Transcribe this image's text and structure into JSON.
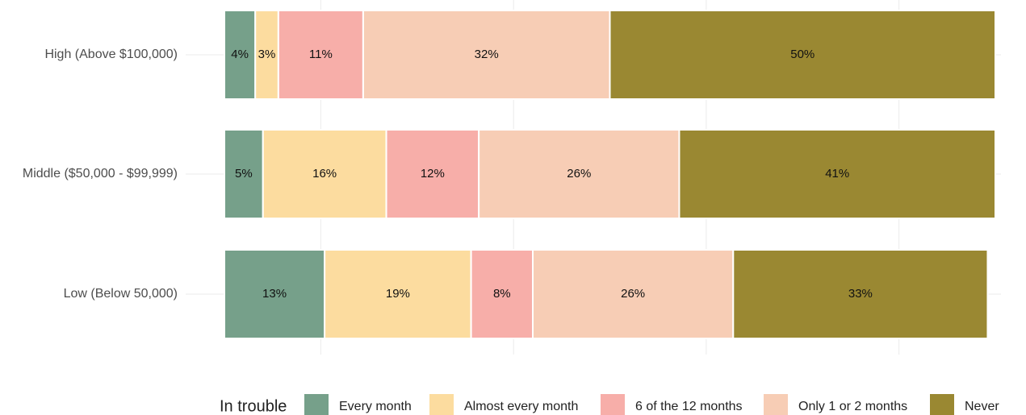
{
  "chart_data": {
    "type": "stacked_bar_horizontal",
    "categories": [
      "High (Above $100,000)",
      "Middle ($50,000 - $99,999)",
      "Low (Below 50,000)"
    ],
    "series": [
      {
        "name": "Every month",
        "color": "#76a08a",
        "values": [
          4,
          5,
          13
        ],
        "value_labels": [
          "4%",
          "5%",
          "13%"
        ]
      },
      {
        "name": "Almost every month",
        "color": "#fcdc9f",
        "values": [
          3,
          16,
          19
        ],
        "value_labels": [
          "3%",
          "16%",
          "19%"
        ]
      },
      {
        "name": "6 of the 12 months",
        "color": "#f7aea9",
        "values": [
          11,
          12,
          8
        ],
        "value_labels": [
          "11%",
          "12%",
          "8%"
        ]
      },
      {
        "name": "Only 1 or 2 months",
        "color": "#f7cdb5",
        "values": [
          32,
          26,
          26
        ],
        "value_labels": [
          "32%",
          "26%",
          "26%"
        ]
      },
      {
        "name": "Never",
        "color": "#9a8832",
        "values": [
          50,
          41,
          33
        ],
        "value_labels": [
          "50%",
          "41%",
          "33%"
        ]
      }
    ],
    "xlim": [
      0,
      100
    ],
    "xticks": [
      12.5,
      37.5,
      62.5,
      87.5
    ],
    "grid": true,
    "legend_title": "In trouble",
    "legend": "bottom"
  }
}
